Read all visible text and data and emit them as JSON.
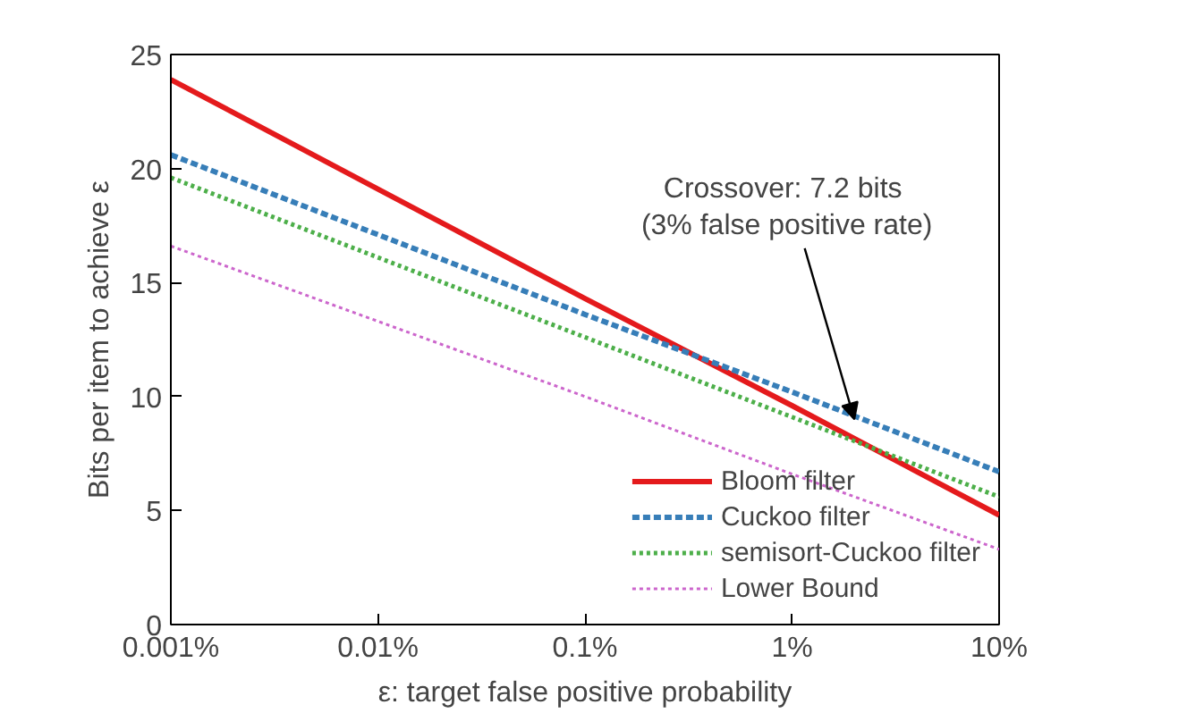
{
  "chart_data": {
    "type": "line",
    "xlabel": "ε: target false positive probability",
    "ylabel": "Bits per item to achieve ε",
    "log": "x",
    "xlim": [
      0.001,
      10
    ],
    "ylim": [
      0,
      25
    ],
    "xticks": [
      {
        "value": 0.001,
        "label": "0.001%"
      },
      {
        "value": 0.01,
        "label": "0.01%"
      },
      {
        "value": 0.1,
        "label": "0.1%"
      },
      {
        "value": 1,
        "label": "1%"
      },
      {
        "value": 10,
        "label": "10%"
      }
    ],
    "yticks": [
      0,
      5,
      10,
      15,
      20,
      25
    ],
    "x": [
      0.001,
      0.01,
      0.1,
      1,
      10
    ],
    "series": [
      {
        "name": "Bloom filter",
        "color": "#e41a1c",
        "line_style": "solid",
        "values": [
          23.9,
          19.1,
          14.3,
          9.6,
          4.8
        ]
      },
      {
        "name": "Cuckoo filter",
        "color": "#377eb8",
        "line_style": "dashed",
        "values": [
          20.6,
          17.1,
          13.6,
          10.2,
          6.7
        ]
      },
      {
        "name": "semisort-Cuckoo filter",
        "color": "#4daf4a",
        "line_style": "dotted",
        "values": [
          19.6,
          16.1,
          12.6,
          9.1,
          5.6
        ]
      },
      {
        "name": "Lower Bound",
        "color": "#cc66cc",
        "line_style": "dotted",
        "values": [
          16.6,
          13.3,
          10.0,
          6.6,
          3.3
        ]
      }
    ],
    "annotations": [
      {
        "text": "Crossover:  7.2 bits\n(3% false positive rate)",
        "x": 2,
        "y": 9
      }
    ],
    "grid": false,
    "legend": "bottom right",
    "marker": "none"
  }
}
